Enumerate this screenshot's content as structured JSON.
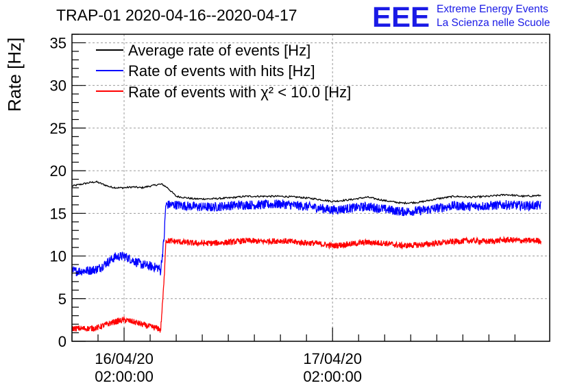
{
  "chart_data": {
    "type": "line",
    "title": "TRAP-01 2020-04-16--2020-04-17",
    "ylabel": "Rate [Hz]",
    "xlabel": "",
    "ylim": [
      0,
      36
    ],
    "xlim_hours": [
      -3,
      24.5
    ],
    "yticks": [
      0,
      5,
      10,
      15,
      20,
      25,
      30,
      35
    ],
    "xticks": [
      {
        "hour": 0,
        "date": "16/04/20",
        "time": "02:00:00"
      },
      {
        "hour": 12,
        "date": "17/04/20",
        "time": "02:00:00"
      }
    ],
    "grid": true,
    "legend_position": "top-left",
    "logo": {
      "mark": "EEE",
      "line1": "Extreme Energy Events",
      "line2": "La Scienza nelle Scuole",
      "color": "#1a1ae6"
    },
    "series": [
      {
        "name": "Average rate of events [Hz]",
        "color": "#000000",
        "x": [
          -3,
          -2.5,
          -2,
          -1.6,
          -1.2,
          -0.8,
          -0.4,
          0,
          0.5,
          1,
          1.5,
          2,
          2.2,
          2.5,
          3,
          4,
          5,
          6,
          7,
          8,
          9,
          10,
          11,
          12,
          13,
          14,
          15,
          16,
          17,
          18,
          19,
          20,
          21,
          22,
          23,
          24
        ],
        "values": [
          18.2,
          18.4,
          18.6,
          18.7,
          18.4,
          18.1,
          18.0,
          18.0,
          18.1,
          18.0,
          18.2,
          18.4,
          18.4,
          18.0,
          17.0,
          16.7,
          16.7,
          16.8,
          17.0,
          17.0,
          17.0,
          16.9,
          16.7,
          16.4,
          16.6,
          16.9,
          16.5,
          16.2,
          16.3,
          16.7,
          17.0,
          16.9,
          17.0,
          17.2,
          17.0,
          17.1
        ],
        "noise": 0.1
      },
      {
        "name": "Rate of events with hits [Hz]",
        "color": "#0000ff",
        "x": [
          -3,
          -2,
          -1.5,
          -1,
          -0.5,
          0,
          0.5,
          1,
          1.5,
          2,
          2.1,
          2.3,
          2.4,
          3,
          4,
          5,
          6,
          7,
          8,
          9,
          10,
          11,
          12,
          13,
          14,
          15,
          16,
          17,
          18,
          19,
          20,
          21,
          22,
          23,
          24
        ],
        "values": [
          8.2,
          8.3,
          8.5,
          9.2,
          9.9,
          10.0,
          9.5,
          9.0,
          8.8,
          8.6,
          8.2,
          12.0,
          16.0,
          16.0,
          15.8,
          15.7,
          15.9,
          16.0,
          16.0,
          16.1,
          15.9,
          15.7,
          15.4,
          15.6,
          15.8,
          15.5,
          15.2,
          15.3,
          15.6,
          15.9,
          15.8,
          15.9,
          16.0,
          15.9,
          15.9
        ],
        "noise": 0.55
      },
      {
        "name": "Rate of events with χ² < 10.0 [Hz]",
        "color": "#ff0000",
        "x": [
          -3,
          -2,
          -1.5,
          -1,
          -0.5,
          0,
          0.5,
          1,
          1.5,
          2,
          2.1,
          2.3,
          2.4,
          3,
          4,
          5,
          6,
          7,
          8,
          9,
          10,
          11,
          12,
          13,
          14,
          15,
          16,
          17,
          18,
          19,
          20,
          21,
          22,
          23,
          24
        ],
        "values": [
          1.5,
          1.5,
          1.6,
          2.0,
          2.3,
          2.5,
          2.3,
          2.0,
          1.7,
          1.5,
          1.2,
          7.0,
          11.8,
          11.7,
          11.5,
          11.5,
          11.6,
          11.8,
          11.7,
          11.8,
          11.6,
          11.5,
          11.2,
          11.4,
          11.6,
          11.5,
          11.2,
          11.3,
          11.5,
          11.7,
          11.8,
          11.7,
          11.9,
          11.8,
          11.8
        ],
        "noise": 0.35
      }
    ]
  }
}
